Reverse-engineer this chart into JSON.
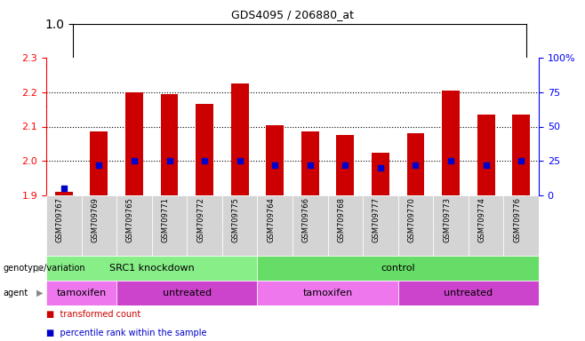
{
  "title": "GDS4095 / 206880_at",
  "samples": [
    "GSM709767",
    "GSM709769",
    "GSM709765",
    "GSM709771",
    "GSM709772",
    "GSM709775",
    "GSM709764",
    "GSM709766",
    "GSM709768",
    "GSM709777",
    "GSM709770",
    "GSM709773",
    "GSM709774",
    "GSM709776"
  ],
  "bar_values": [
    1.91,
    2.085,
    2.2,
    2.195,
    2.165,
    2.225,
    2.105,
    2.085,
    2.075,
    2.025,
    2.08,
    2.205,
    2.135,
    2.135
  ],
  "percentile_values": [
    5,
    22,
    25,
    25,
    25,
    25,
    22,
    22,
    22,
    20,
    22,
    25,
    22,
    25
  ],
  "ymin": 1.9,
  "ymax": 2.3,
  "y_ticks": [
    1.9,
    2.0,
    2.1,
    2.2,
    2.3
  ],
  "y2min": 0,
  "y2max": 100,
  "y2_ticks": [
    0,
    25,
    50,
    75,
    100
  ],
  "y2_labels": [
    "0",
    "25",
    "50",
    "75",
    "100%"
  ],
  "bar_color": "#cc0000",
  "dot_color": "#0000cc",
  "genotype_groups": [
    {
      "label": "SRC1 knockdown",
      "start": 0,
      "end": 6,
      "color": "#88ee88"
    },
    {
      "label": "control",
      "start": 6,
      "end": 14,
      "color": "#66dd66"
    }
  ],
  "agent_groups": [
    {
      "label": "tamoxifen",
      "start": 0,
      "end": 2,
      "color": "#ee77ee"
    },
    {
      "label": "untreated",
      "start": 2,
      "end": 6,
      "color": "#cc44cc"
    },
    {
      "label": "tamoxifen",
      "start": 6,
      "end": 10,
      "color": "#ee77ee"
    },
    {
      "label": "untreated",
      "start": 10,
      "end": 14,
      "color": "#cc44cc"
    }
  ],
  "genotype_label": "genotype/variation",
  "agent_label": "agent",
  "legend_items": [
    {
      "label": "transformed count",
      "color": "#cc0000"
    },
    {
      "label": "percentile rank within the sample",
      "color": "#0000cc"
    }
  ],
  "bar_width": 0.5,
  "dot_size": 20,
  "grid_lines": [
    2.0,
    2.1,
    2.2
  ],
  "tick_label_bg": "#cccccc",
  "tick_label_fontsize": 6.5
}
